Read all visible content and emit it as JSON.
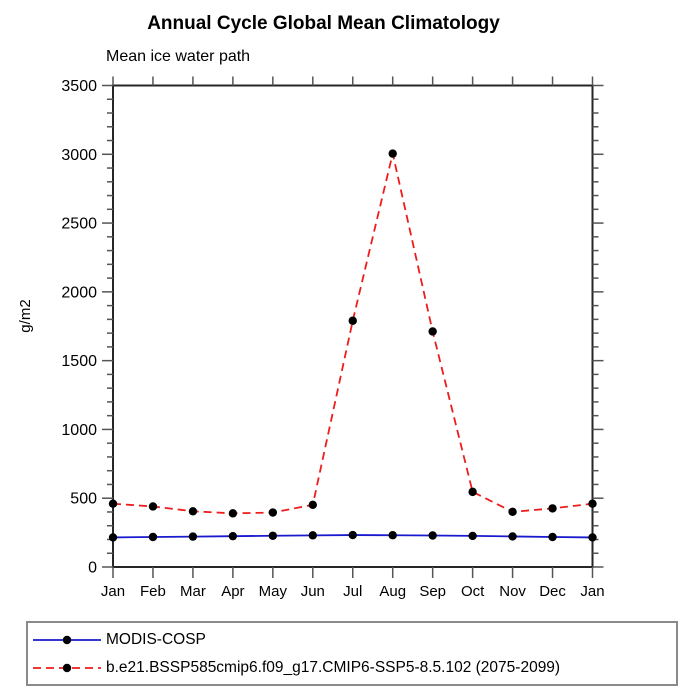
{
  "page": {
    "background_color": "#ffffff"
  },
  "chart_data": {
    "type": "line",
    "title": "Annual Cycle Global Mean Climatology",
    "subtitle": "Mean ice water path",
    "xlabel": "",
    "ylabel": "g/m2",
    "categories": [
      "Jan",
      "Feb",
      "Mar",
      "Apr",
      "May",
      "Jun",
      "Jul",
      "Aug",
      "Sep",
      "Oct",
      "Nov",
      "Dec",
      "Jan"
    ],
    "ylim": [
      0,
      3500
    ],
    "ytick_major_interval": 500,
    "ytick_minor_interval": 100,
    "ytick_labels": [
      "0",
      "500",
      "1000",
      "1500",
      "2000",
      "2500",
      "3000",
      "3500"
    ],
    "grid": false,
    "legend_position": "bottom-box",
    "series": [
      {
        "name": "MODIS-COSP",
        "line_color": "#1919cd",
        "line_style": "solid",
        "marker": "circle",
        "marker_color": "#000000",
        "values": [
          215,
          218,
          221,
          224,
          227,
          230,
          232,
          231,
          229,
          226,
          222,
          218,
          215
        ]
      },
      {
        "name": "b.e21.BSSP585cmip6.f09_g17.CMIP6-SSP5-8.5.102 (2075-2099)",
        "line_color": "#ee1c1c",
        "line_style": "dashed",
        "marker": "circle",
        "marker_color": "#000000",
        "values": [
          460,
          440,
          405,
          390,
          396,
          452,
          1790,
          3005,
          1712,
          546,
          401,
          426,
          460
        ]
      }
    ]
  },
  "colors": {
    "axis": "#262626",
    "tick": "#555555",
    "text": "#000000",
    "legend_border": "#8a8a8a"
  }
}
